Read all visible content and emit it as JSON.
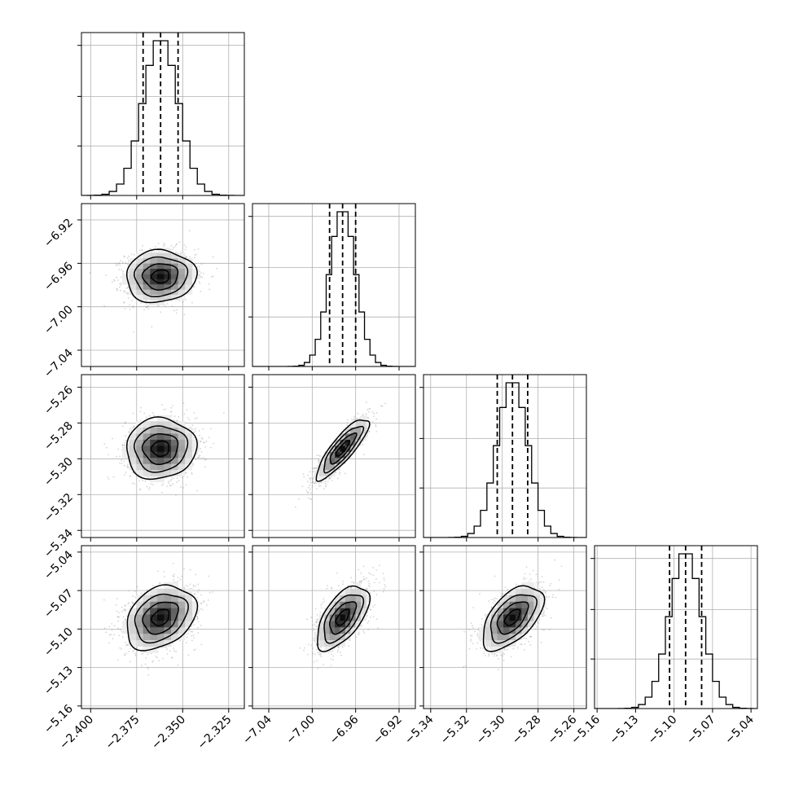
{
  "chart_data": {
    "type": "corner",
    "parameters": [
      {
        "mean": -2.362,
        "std": 0.0095,
        "lim": [
          -2.405,
          -2.3165
        ],
        "ticks": [
          -2.4,
          -2.375,
          -2.35,
          -2.325
        ],
        "tick_labels": [
          "−2.400",
          "−2.375",
          "−2.350",
          "−2.325"
        ],
        "quantiles": [
          -2.3715,
          -2.362,
          -2.3525
        ]
      },
      {
        "mean": -6.972,
        "std": 0.012,
        "lim": [
          -7.055,
          -6.905
        ],
        "ticks": [
          -7.04,
          -7.0,
          -6.96,
          -6.92
        ],
        "tick_labels": [
          "−7.04",
          "−7.00",
          "−6.96",
          "−6.92"
        ],
        "quantiles": [
          -6.984,
          -6.972,
          -6.96
        ]
      },
      {
        "mean": -5.2943,
        "std": 0.0085,
        "lim": [
          -5.344,
          -5.253
        ],
        "ticks": [
          -5.34,
          -5.32,
          -5.3,
          -5.28,
          -5.26
        ],
        "tick_labels": [
          "−5.34",
          "−5.32",
          "−5.30",
          "−5.28",
          "−5.26"
        ],
        "quantiles": [
          -5.3028,
          -5.2943,
          -5.2858
        ]
      },
      {
        "mean": -5.091,
        "std": 0.0125,
        "lim": [
          -5.162,
          -5.035
        ],
        "ticks": [
          -5.16,
          -5.13,
          -5.1,
          -5.07,
          -5.04
        ],
        "tick_labels": [
          "−5.16",
          "−5.13",
          "−5.10",
          "−5.07",
          "−5.04"
        ],
        "quantiles": [
          -5.1035,
          -5.091,
          -5.0785
        ]
      }
    ],
    "correlations": [
      [
        1,
        0.05,
        0.05,
        0.3
      ],
      [
        0.05,
        1,
        0.85,
        0.6
      ],
      [
        0.05,
        0.85,
        1,
        0.55
      ],
      [
        0.3,
        0.6,
        0.55,
        1
      ]
    ],
    "histogram_bins": 20,
    "grid": true,
    "contour_levels_sigma": [
      0.5,
      1.0,
      1.5,
      2.0
    ],
    "title": "",
    "labels": []
  }
}
